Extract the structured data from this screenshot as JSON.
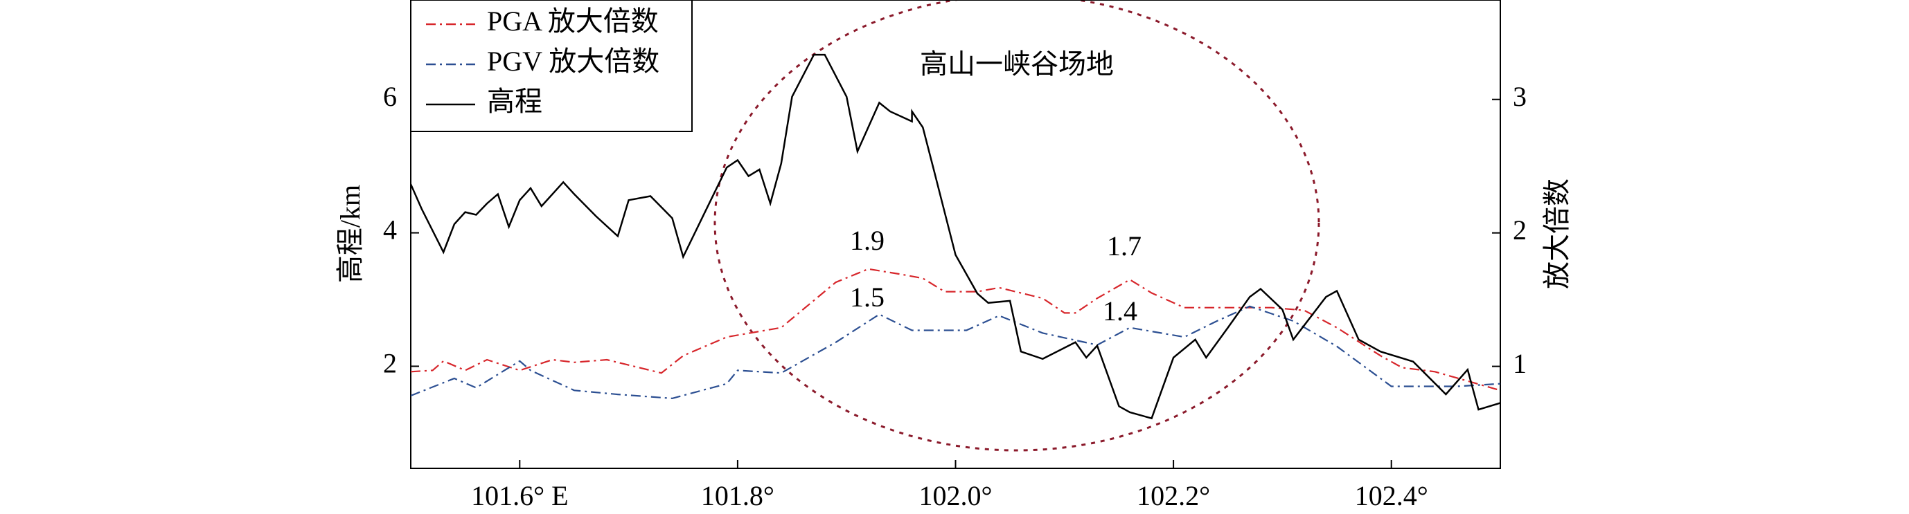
{
  "chart_data": {
    "type": "line",
    "xlabel": "",
    "ylabel": "高程/km",
    "y2label": "放大倍数",
    "xlim": [
      101.5,
      102.5
    ],
    "xticks": [
      {
        "value": 101.6,
        "label": "101.6° E"
      },
      {
        "value": 101.8,
        "label": "101.8°"
      },
      {
        "value": 102.0,
        "label": "102.0°"
      },
      {
        "value": 102.2,
        "label": "102.2°"
      },
      {
        "value": 102.4,
        "label": "102.4°"
      }
    ],
    "ylim": [
      0.47,
      7.49
    ],
    "yticks": [
      2,
      4,
      6
    ],
    "y2lim": [
      0.236,
      3.745
    ],
    "y2ticks": [
      1,
      2,
      3
    ],
    "legend": "upper left",
    "annotations": [
      {
        "text": "高山一峡谷场地",
        "color": "#000000"
      },
      {
        "text": "1.9",
        "color": "#d7262b"
      },
      {
        "text": "1.7",
        "color": "#d7262b"
      },
      {
        "text": "1.5",
        "color": "#2c4f92"
      },
      {
        "text": "1.4",
        "color": "#2c4f92"
      }
    ],
    "series": [
      {
        "name": "PGA 放大倍数",
        "color": "#d7262b",
        "style": "dashdot",
        "axis": "y2",
        "x": [
          101.5,
          101.52,
          101.53,
          101.55,
          101.57,
          101.6,
          101.63,
          101.65,
          101.68,
          101.7,
          101.73,
          101.75,
          101.79,
          101.84,
          101.89,
          101.92,
          101.95,
          101.97,
          101.99,
          102.02,
          102.04,
          102.08,
          102.1,
          102.11,
          102.13,
          102.16,
          102.18,
          102.21,
          102.25,
          102.29,
          102.32,
          102.35,
          102.39,
          102.41,
          102.44,
          102.5
        ],
        "values": [
          0.96,
          0.97,
          1.04,
          0.97,
          1.05,
          0.97,
          1.05,
          1.03,
          1.05,
          1.01,
          0.95,
          1.08,
          1.22,
          1.29,
          1.63,
          1.73,
          1.69,
          1.66,
          1.56,
          1.56,
          1.59,
          1.51,
          1.4,
          1.4,
          1.51,
          1.65,
          1.55,
          1.44,
          1.44,
          1.44,
          1.42,
          1.29,
          1.08,
          0.99,
          0.96,
          0.82
        ]
      },
      {
        "name": "PGV 放大倍数",
        "color": "#2c4f92",
        "style": "dashdot",
        "axis": "y2",
        "x": [
          101.5,
          101.54,
          101.56,
          101.6,
          101.61,
          101.65,
          101.69,
          101.74,
          101.79,
          101.8,
          101.84,
          101.89,
          101.93,
          101.96,
          102.01,
          102.04,
          102.08,
          102.13,
          102.16,
          102.21,
          102.24,
          102.27,
          102.31,
          102.35,
          102.4,
          102.46,
          102.5
        ],
        "values": [
          0.78,
          0.91,
          0.84,
          1.04,
          0.97,
          0.82,
          0.79,
          0.76,
          0.87,
          0.97,
          0.95,
          1.18,
          1.39,
          1.27,
          1.27,
          1.38,
          1.25,
          1.16,
          1.29,
          1.22,
          1.34,
          1.45,
          1.34,
          1.15,
          0.85,
          0.85,
          0.87
        ]
      },
      {
        "name": "高程",
        "color": "#000000",
        "style": "solid",
        "axis": "y",
        "x": [
          101.5,
          101.51,
          101.53,
          101.54,
          101.55,
          101.56,
          101.57,
          101.58,
          101.59,
          101.6,
          101.61,
          101.62,
          101.64,
          101.65,
          101.67,
          101.69,
          101.7,
          101.72,
          101.74,
          101.75,
          101.77,
          101.79,
          101.8,
          101.81,
          101.82,
          101.83,
          101.84,
          101.85,
          101.87,
          101.88,
          101.9,
          101.91,
          101.93,
          101.94,
          101.96,
          101.96,
          101.97,
          101.98,
          102.0,
          102.02,
          102.03,
          102.05,
          102.06,
          102.08,
          102.11,
          102.12,
          102.13,
          102.15,
          102.16,
          102.18,
          102.2,
          102.22,
          102.23,
          102.25,
          102.27,
          102.28,
          102.3,
          102.31,
          102.34,
          102.35,
          102.37,
          102.39,
          102.42,
          102.45,
          102.47,
          102.48,
          102.5
        ],
        "values": [
          4.73,
          4.36,
          3.71,
          4.13,
          4.31,
          4.27,
          4.44,
          4.58,
          4.09,
          4.49,
          4.67,
          4.4,
          4.76,
          4.58,
          4.25,
          3.95,
          4.49,
          4.55,
          4.22,
          3.64,
          4.31,
          4.98,
          5.09,
          4.85,
          4.95,
          4.44,
          5.04,
          6.04,
          6.67,
          6.67,
          6.04,
          5.22,
          5.95,
          5.82,
          5.67,
          5.82,
          5.58,
          4.95,
          3.67,
          3.09,
          2.95,
          2.98,
          2.22,
          2.11,
          2.36,
          2.13,
          2.31,
          1.4,
          1.31,
          1.22,
          2.13,
          2.4,
          2.13,
          2.58,
          3.04,
          3.16,
          2.85,
          2.4,
          3.04,
          3.13,
          2.4,
          2.22,
          2.07,
          1.58,
          1.95,
          1.35,
          1.45
        ]
      }
    ]
  }
}
